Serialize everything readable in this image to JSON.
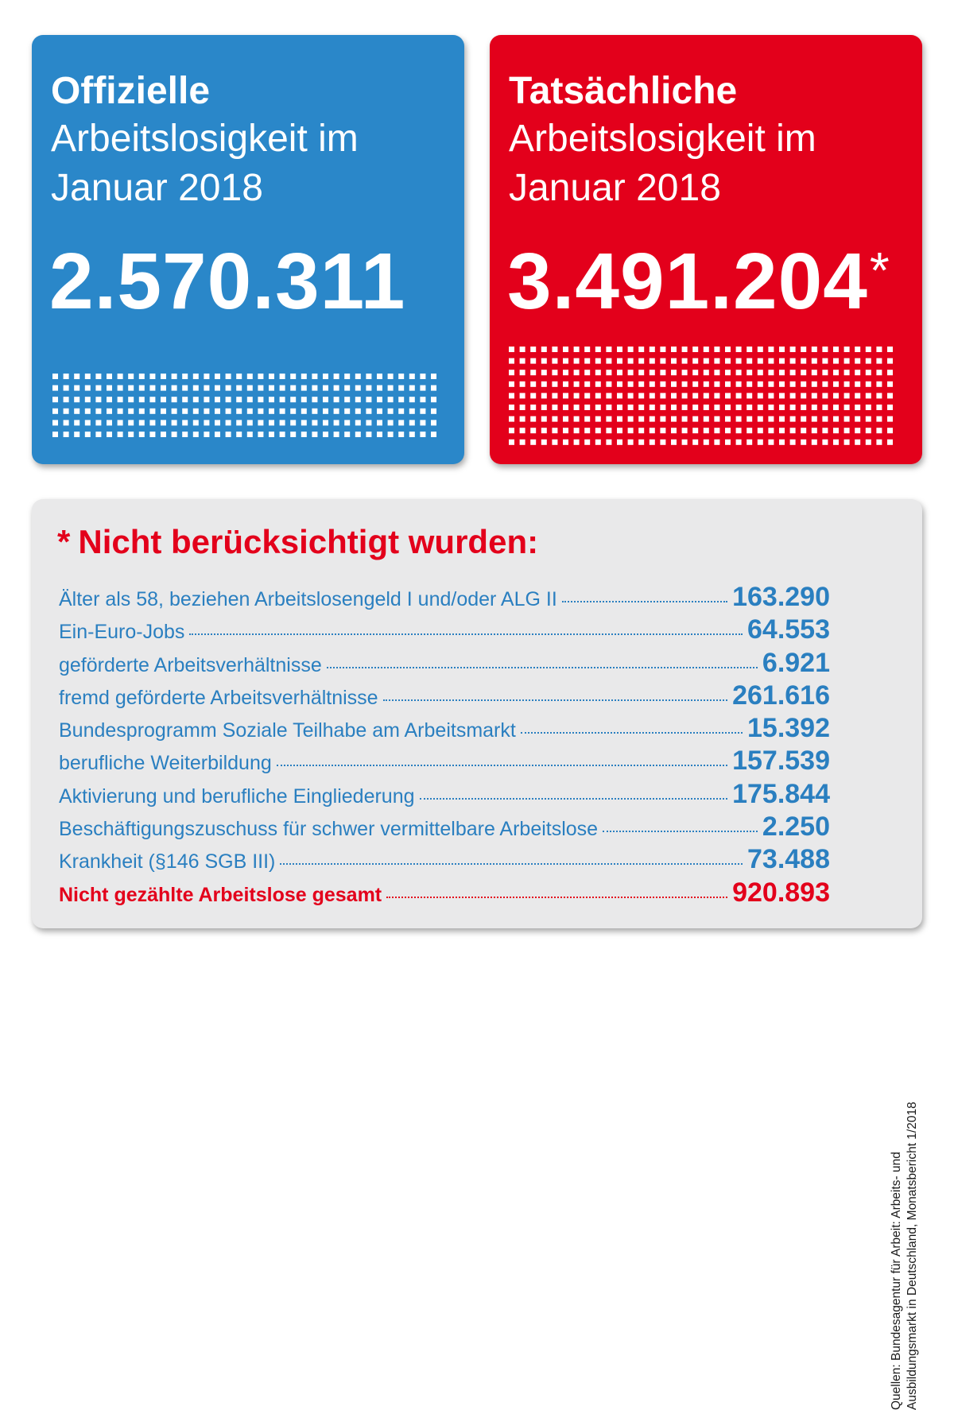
{
  "official": {
    "title": "Offizielle",
    "subtitle": "Arbeitslosigkeit im Januar 2018",
    "number": "2.570.311",
    "color": "#2a87c9"
  },
  "actual": {
    "title": "Tatsächliche",
    "subtitle": "Arbeitslosigkeit im Januar 2018",
    "number": "3.491.204",
    "asterisk": "*",
    "color": "#e3001b"
  },
  "panel": {
    "star": "*",
    "heading": "Nicht berücksichtigt wurden:",
    "rows": [
      {
        "label": "Älter als 58, beziehen Arbeitslosengeld I und/oder ALG II",
        "value": "163.290"
      },
      {
        "label": "Ein-Euro-Jobs",
        "value": "64.553"
      },
      {
        "label": "geförderte Arbeitsverhältnisse",
        "value": "6.921"
      },
      {
        "label": "fremd geförderte Arbeitsverhältnisse",
        "value": "261.616"
      },
      {
        "label": "Bundesprogramm Soziale Teilhabe am Arbeitsmarkt",
        "value": "15.392"
      },
      {
        "label": "berufliche Weiterbildung",
        "value": "157.539"
      },
      {
        "label": "Aktivierung und berufliche Eingliederung",
        "value": "175.844"
      },
      {
        "label": "Beschäftigungszuschuss für schwer vermittelbare Arbeitslose",
        "value": "2.250"
      },
      {
        "label": "Krankheit (§146 SGB III)",
        "value": "73.488"
      }
    ],
    "total": {
      "label": "Nicht gezählte Arbeitslose gesamt",
      "value": "920.893"
    }
  },
  "source": {
    "line1": "Quellen: Bundesagentur für Arbeit: Arbeits- und",
    "line2": "Ausbildungsmarkt in Deutschland, Monatsbericht 1/2018"
  }
}
